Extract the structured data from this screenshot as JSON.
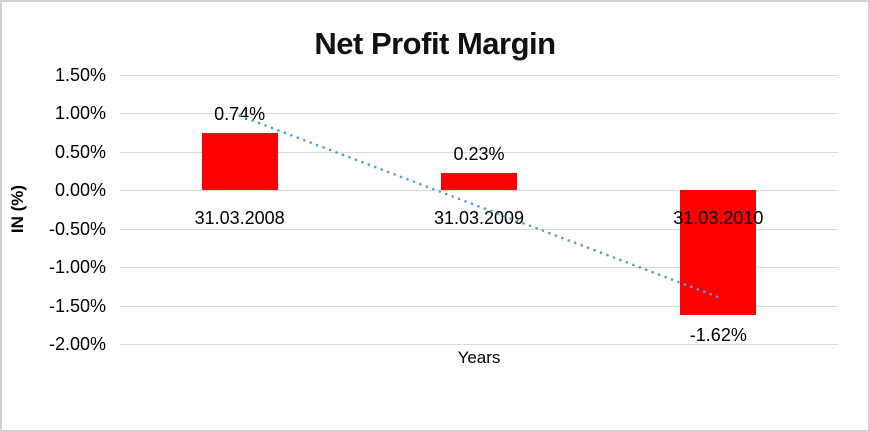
{
  "chart_data": {
    "type": "bar",
    "title": "Net Profit Margin",
    "xlabel": "Years",
    "ylabel": "IN (%)",
    "categories": [
      "31.03.2008",
      "31.03.2009",
      "31.03.2010"
    ],
    "values": [
      0.74,
      0.23,
      -1.62
    ],
    "data_labels": [
      "0.74%",
      "0.23%",
      "-1.62%"
    ],
    "yticks": [
      1.5,
      1.0,
      0.5,
      0.0,
      -0.5,
      -1.0,
      -1.5,
      -2.0
    ],
    "ytick_labels": [
      "1.50%",
      "1.00%",
      "0.50%",
      "0.00%",
      "-0.50%",
      "-1.00%",
      "-1.50%",
      "-2.00%"
    ],
    "ylim": [
      -2.0,
      1.5
    ],
    "grid": true,
    "legend": "none",
    "bar_color": "#ff0000",
    "gridline_color": "#d9d9d9",
    "trendline": {
      "style": "dotted",
      "color": "#5b9bd5",
      "start_category_index": 0,
      "start_value": 0.97,
      "end_category_index": 2,
      "end_value": -1.39
    }
  }
}
